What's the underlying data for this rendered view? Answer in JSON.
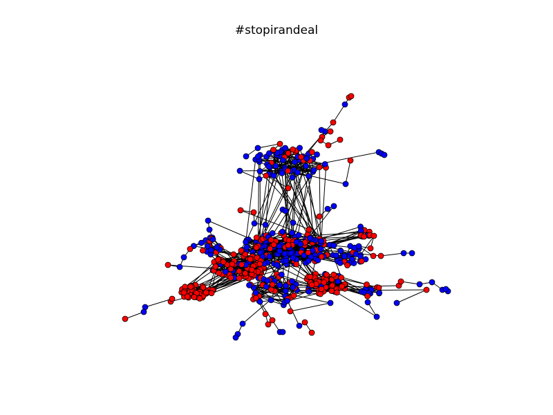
{
  "title": "#stopirandeal",
  "colors": {
    "background": "#ffffff",
    "edge": "#000000",
    "node_outline": "#000000",
    "node_group_a": "#ff0000",
    "node_group_b": "#0000ff"
  }
}
